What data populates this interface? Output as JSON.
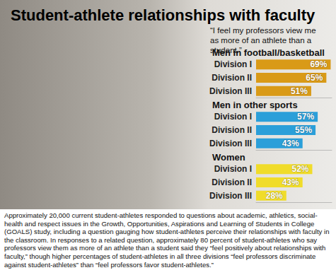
{
  "chart_data": {
    "type": "bar",
    "orientation": "horizontal",
    "title": "Student-athlete relationships with faculty",
    "subtitle": "“I feel my professors view me as more of an athlete than a student.”",
    "categories": [
      "Division I",
      "Division II",
      "Division III"
    ],
    "series": [
      {
        "name": "Men in football/basketball",
        "color": "#d99a17",
        "values": [
          69,
          65,
          51
        ],
        "value_labels": [
          "69%",
          "65%",
          "51%"
        ]
      },
      {
        "name": "Men in other sports",
        "color": "#2b9fd9",
        "values": [
          57,
          55,
          43
        ],
        "value_labels": [
          "57%",
          "55%",
          "43%"
        ]
      },
      {
        "name": "Women",
        "color": "#f0dc2a",
        "values": [
          52,
          43,
          28
        ],
        "value_labels": [
          "52%",
          "43%",
          "28%"
        ]
      }
    ],
    "xlim": [
      0,
      70
    ],
    "xticks": [
      0,
      70
    ],
    "grid": false,
    "data_labels": true,
    "tick_labels": "y",
    "annotations": [
      "Approximately 20,000 current student-athletes responded to questions about academic, athletics, social-health and respect issues in the Growth, Opportunities, Aspirations and Learning of Students in College (GOALS) study, including a question gauging how student-athletes perceive their relationships with faculty in the classroom. In responses to a related question, approximately 80 percent of student-athletes who say professors view them as more of an athlete than a student said they “feel positively about relationships with faculty,” though higher percentages of student-athletes in all three divisions “feel professors discriminate against student-athletes” than “feel professors favor student-athletes.”"
    ]
  }
}
